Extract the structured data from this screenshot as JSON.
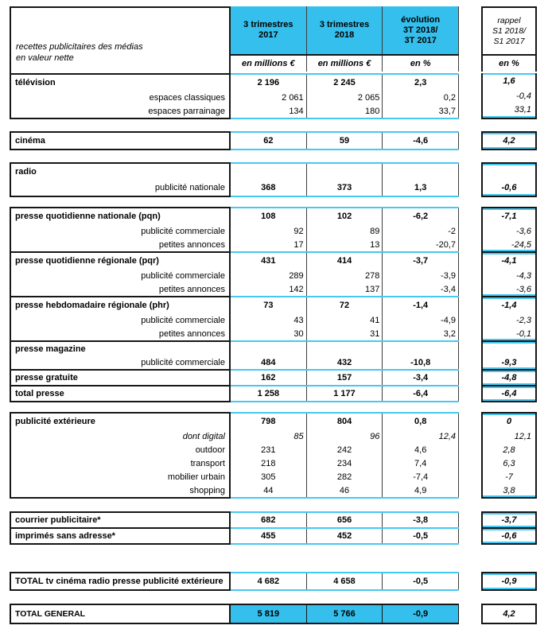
{
  "colors": {
    "cyan_fill": "#35bfec",
    "cyan_rule": "#45c8f1",
    "border_black": "#161616"
  },
  "header": {
    "title1": "recettes publicitaires des médias",
    "title2": "en valeur nette",
    "col2017": {
      "l1": "3 trimestres",
      "l2": "2017",
      "unit": "en millions €"
    },
    "col2018": {
      "l1": "3 trimestres",
      "l2": "2018",
      "unit": "en millions €"
    },
    "colevol": {
      "l1": "évolution",
      "l2": "3T 2018/",
      "l3": "3T 2017",
      "unit": "en %"
    },
    "rappel": {
      "l1": "rappel",
      "l2": "S1 2018/",
      "l3": "S1 2017",
      "unit": "en %"
    }
  },
  "sections": [
    {
      "id": "television",
      "rows": [
        {
          "label": "télévision",
          "style": "main",
          "v2017": "2 196",
          "v2018": "2 245",
          "evol": "2,3",
          "rappel": "1,6"
        },
        {
          "label": "espaces classiques",
          "style": "sub",
          "v2017": "2 061",
          "v2018": "2 065",
          "evol": "0,2",
          "rappel": "-0,4"
        },
        {
          "label": "espaces parrainage",
          "style": "sub",
          "v2017": "134",
          "v2018": "180",
          "evol": "33,7",
          "rappel": "33,1"
        }
      ]
    },
    {
      "id": "cinema",
      "rows": [
        {
          "label": "cinéma",
          "style": "main",
          "v2017": "62",
          "v2018": "59",
          "evol": "-4,6",
          "rappel": "4,2"
        }
      ]
    },
    {
      "id": "radio",
      "rows": [
        {
          "label": "radio",
          "style": "head"
        },
        {
          "label": "publicité nationale",
          "style": "mainsub",
          "v2017": "368",
          "v2018": "373",
          "evol": "1,3",
          "rappel": "-0,6"
        }
      ]
    },
    {
      "id": "pqn",
      "rows": [
        {
          "label": "presse quotidienne nationale (pqn)",
          "style": "main",
          "v2017": "108",
          "v2018": "102",
          "evol": "-6,2",
          "rappel": "-7,1"
        },
        {
          "label": "publicité commerciale",
          "style": "sub",
          "v2017": "92",
          "v2018": "89",
          "evol": "-2",
          "rappel": "-3,6"
        },
        {
          "label": "petites annonces",
          "style": "sub",
          "v2017": "17",
          "v2018": "13",
          "evol": "-20,7",
          "rappel": "-24,5"
        }
      ]
    },
    {
      "id": "pqr",
      "rows": [
        {
          "label": "presse quotidienne régionale (pqr)",
          "style": "main",
          "v2017": "431",
          "v2018": "414",
          "evol": "-3,7",
          "rappel": "-4,1"
        },
        {
          "label": "publicité commerciale",
          "style": "sub",
          "v2017": "289",
          "v2018": "278",
          "evol": "-3,9",
          "rappel": "-4,3"
        },
        {
          "label": "petites annonces",
          "style": "sub",
          "v2017": "142",
          "v2018": "137",
          "evol": "-3,4",
          "rappel": "-3,6"
        }
      ]
    },
    {
      "id": "phr",
      "rows": [
        {
          "label": "presse hebdomadaire régionale (phr)",
          "style": "main",
          "v2017": "73",
          "v2018": "72",
          "evol": "-1,4",
          "rappel": "-1,4"
        },
        {
          "label": "publicité commerciale",
          "style": "sub",
          "v2017": "43",
          "v2018": "41",
          "evol": "-4,9",
          "rappel": "-2,3"
        },
        {
          "label": "petites annonces",
          "style": "sub",
          "v2017": "30",
          "v2018": "31",
          "evol": "3,2",
          "rappel": "-0,1"
        }
      ]
    },
    {
      "id": "magazine",
      "rows": [
        {
          "label": "presse magazine",
          "style": "head"
        },
        {
          "label": "publicité commerciale",
          "style": "mainsub",
          "v2017": "484",
          "v2018": "432",
          "evol": "-10,8",
          "rappel": "-9,3"
        }
      ]
    },
    {
      "id": "gratuite",
      "rows": [
        {
          "label": "presse gratuite",
          "style": "main",
          "v2017": "162",
          "v2018": "157",
          "evol": "-3,4",
          "rappel": "-4,8"
        }
      ]
    },
    {
      "id": "totalpresse",
      "rows": [
        {
          "label": "total presse",
          "style": "main",
          "v2017": "1 258",
          "v2018": "1 177",
          "evol": "-6,4",
          "rappel": "-6,4"
        }
      ]
    },
    {
      "id": "pubext",
      "rows": [
        {
          "label": "publicité extérieure",
          "style": "main",
          "v2017": "798",
          "v2018": "804",
          "evol": "0,8",
          "rappel": "0"
        },
        {
          "label": "dont digital",
          "style": "subi",
          "v2017": "85",
          "v2018": "96",
          "evol": "12,4",
          "rappel": "12,1"
        },
        {
          "label": "outdoor",
          "style": "subc",
          "v2017": "231",
          "v2018": "242",
          "evol": "4,6",
          "rappel": "2,8"
        },
        {
          "label": "transport",
          "style": "subc",
          "v2017": "218",
          "v2018": "234",
          "evol": "7,4",
          "rappel": "6,3"
        },
        {
          "label": "mobilier urbain",
          "style": "subc",
          "v2017": "305",
          "v2018": "282",
          "evol": "-7,4",
          "rappel": "-7"
        },
        {
          "label": "shopping",
          "style": "subc",
          "v2017": "44",
          "v2018": "46",
          "evol": "4,9",
          "rappel": "3,8"
        }
      ]
    },
    {
      "id": "courrier",
      "rows": [
        {
          "label": "courrier publicitaire*",
          "style": "main",
          "v2017": "682",
          "v2018": "656",
          "evol": "-3,8",
          "rappel": "-3,7"
        }
      ]
    },
    {
      "id": "imprimes",
      "rows": [
        {
          "label": "imprimés sans adresse*",
          "style": "main",
          "v2017": "455",
          "v2018": "452",
          "evol": "-0,5",
          "rappel": "-0,6"
        }
      ]
    },
    {
      "id": "totaltv",
      "rows": [
        {
          "label": "TOTAL tv cinéma radio presse publicité extérieure",
          "style": "main",
          "v2017": "4 682",
          "v2018": "4 658",
          "evol": "-0,5",
          "rappel": "-0,9"
        }
      ]
    },
    {
      "id": "totalgeneral",
      "rows": [
        {
          "label": "TOTAL GENERAL",
          "style": "total",
          "v2017": "5 819",
          "v2018": "5 766",
          "evol": "-0,9",
          "rappel": "4,2"
        }
      ]
    }
  ]
}
